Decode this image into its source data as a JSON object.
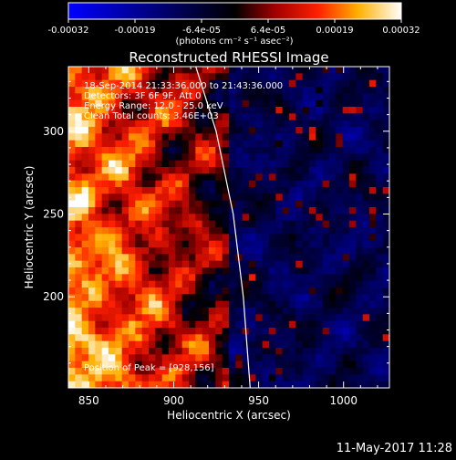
{
  "chart_data": {
    "type": "heatmap",
    "title": "Reconstructed RHESSI Image",
    "xlabel": "Heliocentric X (arcsec)",
    "ylabel": "Heliocentric Y (arcsec)",
    "x_range": [
      838,
      1027
    ],
    "y_range": [
      145,
      339
    ],
    "x_ticks": [
      850,
      900,
      950,
      1000
    ],
    "y_ticks": [
      200,
      250,
      300
    ],
    "colorbar": {
      "range": [
        -0.00032,
        0.00032
      ],
      "tick_labels": [
        "-0.00032",
        "-0.00019",
        "-6.4e-05",
        "6.4e-05",
        "0.00019",
        "0.00032"
      ],
      "unit_label": "(photons cm⁻² s⁻¹ asec⁻²)"
    },
    "annotations": [
      "18-Sep-2014 21:33:36.000 to 21:43:36.000",
      "Detectors: 3F 6F 9F, Att 0",
      "Energy Range: 12.0 - 25.0 keV",
      "Clean    Total counts: 3.46E+03"
    ],
    "peak_label": "Position of Peak = [928,156]",
    "peak_position": [
      928,
      156
    ],
    "limb_curve": [
      [
        913,
        339
      ],
      [
        925,
        300
      ],
      [
        935,
        250
      ],
      [
        941,
        200
      ],
      [
        945,
        145
      ]
    ],
    "timestamp": "11-May-2017 11:28",
    "colors": {
      "limb_line": "#ffffff"
    }
  }
}
